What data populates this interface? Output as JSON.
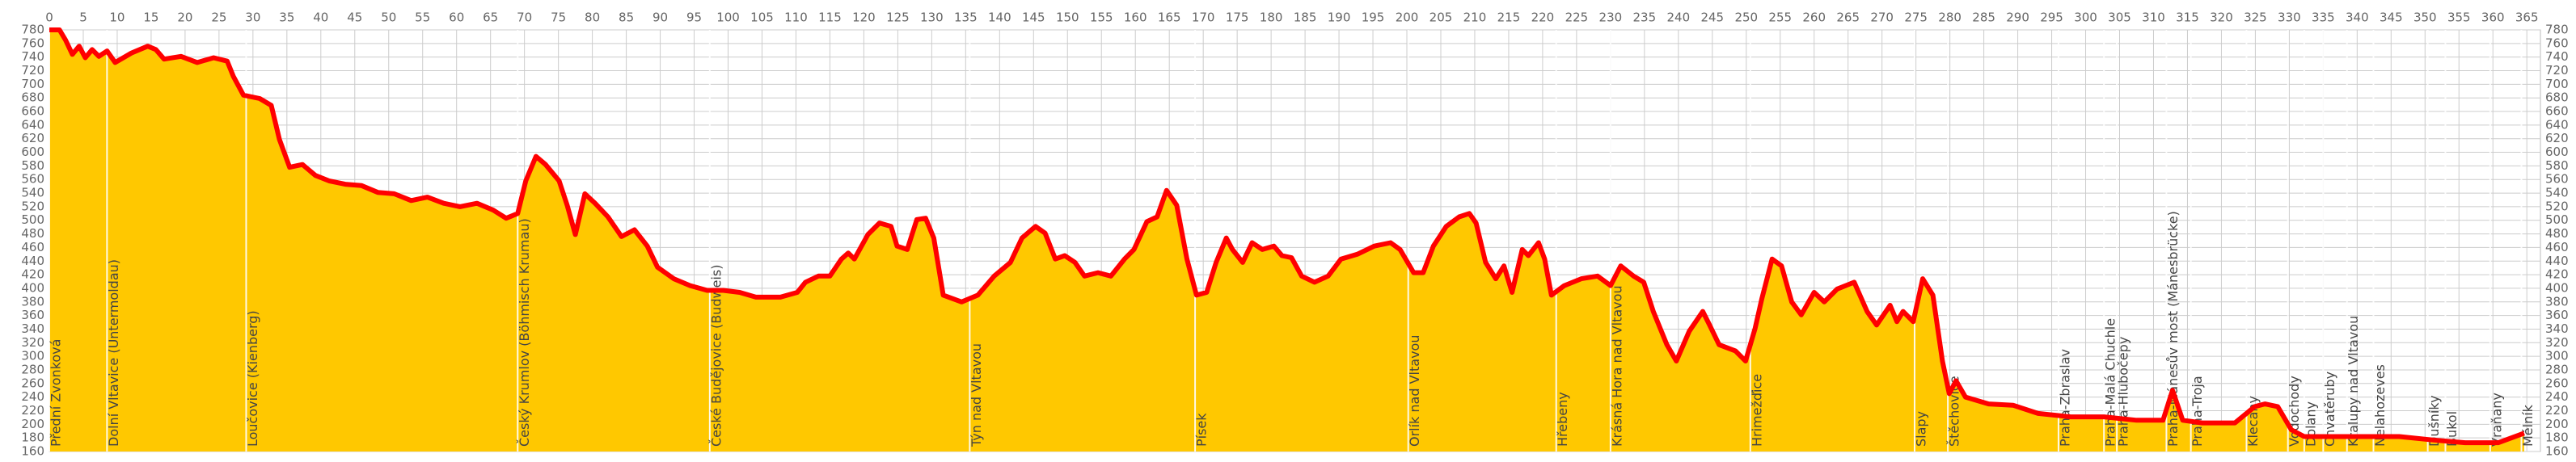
{
  "chart_data": {
    "type": "area",
    "color": "#ffc800",
    "line_color": "#ff0000",
    "grid": true,
    "xlim": [
      0,
      367
    ],
    "xticks": [
      0,
      5,
      10,
      15,
      20,
      25,
      30,
      35,
      40,
      45,
      50,
      55,
      60,
      65,
      70,
      75,
      80,
      85,
      90,
      95,
      100,
      105,
      110,
      115,
      120,
      125,
      130,
      135,
      140,
      145,
      150,
      155,
      160,
      165,
      170,
      175,
      180,
      185,
      190,
      195,
      200,
      205,
      210,
      215,
      220,
      225,
      230,
      235,
      240,
      245,
      250,
      255,
      260,
      265,
      270,
      275,
      280,
      285,
      290,
      295,
      300,
      305,
      310,
      315,
      320,
      325,
      330,
      335,
      340,
      345,
      350,
      355,
      360,
      365
    ],
    "ylim": [
      160,
      780
    ],
    "yticks": [
      160,
      180,
      200,
      220,
      240,
      260,
      280,
      300,
      320,
      340,
      360,
      380,
      400,
      420,
      440,
      460,
      480,
      500,
      520,
      540,
      560,
      580,
      600,
      620,
      640,
      660,
      680,
      700,
      720,
      740,
      760,
      780
    ],
    "x": [
      0,
      1.5,
      2.4,
      3.4,
      4.4,
      5.3,
      6.3,
      7.3,
      8.5,
      9.7,
      12.1,
      14.5,
      15.7,
      16.9,
      19.4,
      21.8,
      24.2,
      26.2,
      27.1,
      28.6,
      31,
      32.7,
      33.9,
      35.4,
      37.3,
      39.2,
      41.2,
      43.6,
      46,
      48.4,
      50.8,
      53.3,
      55.7,
      58.1,
      60.5,
      63,
      65.4,
      67.3,
      69,
      70.2,
      71.7,
      73.1,
      75.1,
      76.3,
      77.5,
      78.9,
      80.4,
      82.3,
      84.3,
      86.2,
      88.1,
      89.6,
      92,
      94.4,
      96.9,
      99.3,
      101.7,
      104.1,
      107.7,
      110.2,
      111.4,
      113.3,
      115,
      116.7,
      117.7,
      118.6,
      120.6,
      122.3,
      124,
      124.9,
      126.4,
      127.8,
      129.1,
      130.3,
      131.7,
      134.4,
      136.8,
      139.2,
      141.6,
      143.3,
      145.3,
      146.7,
      148.2,
      149.6,
      151.1,
      152.5,
      154.5,
      156.4,
      158.4,
      159.8,
      161.7,
      163.2,
      164.6,
      166.1,
      167.6,
      169,
      170.5,
      171.9,
      173.4,
      174.3,
      175.8,
      177.2,
      178.7,
      180.4,
      181.6,
      183,
      184.5,
      186.4,
      188.4,
      190.3,
      192.7,
      195.2,
      197.6,
      199,
      201,
      202.4,
      203.9,
      205.8,
      207.7,
      209.2,
      210.2,
      211.6,
      213.1,
      214.3,
      215.5,
      217,
      217.9,
      219.4,
      220.3,
      221.3,
      223.2,
      225.7,
      228.1,
      230,
      231.5,
      233.4,
      234.9,
      236.3,
      238.3,
      239.7,
      241.6,
      243.6,
      244.6,
      246,
      248.4,
      249.9,
      251.3,
      252.3,
      253.8,
      255.2,
      256.7,
      258.1,
      260,
      261.5,
      263.4,
      265.9,
      267.8,
      269.2,
      271.2,
      272.2,
      273.1,
      274.6,
      276,
      277.5,
      278.9,
      279.9,
      280.9,
      282.3,
      285.7,
      289.3,
      293,
      297.8,
      302.7,
      307.5,
      311.4,
      312.8,
      314.3,
      317.2,
      322,
      324.9,
      326.4,
      328.3,
      330.3,
      332.2,
      336.6,
      340.4,
      346.2,
      351.1,
      355.9,
      360.8,
      364.6
    ],
    "values": [
      780,
      780,
      765,
      744,
      756,
      739,
      751,
      741,
      749,
      732,
      746,
      756,
      751,
      737,
      741,
      732,
      739,
      734,
      712,
      684,
      679,
      669,
      619,
      578,
      582,
      566,
      558,
      553,
      551,
      541,
      539,
      529,
      534,
      525,
      520,
      525,
      515,
      503,
      510,
      558,
      594,
      582,
      558,
      522,
      479,
      539,
      525,
      505,
      476,
      486,
      462,
      431,
      414,
      404,
      397,
      397,
      394,
      387,
      387,
      394,
      409,
      418,
      418,
      443,
      452,
      443,
      479,
      496,
      491,
      462,
      457,
      501,
      503,
      474,
      390,
      380,
      390,
      418,
      438,
      474,
      491,
      481,
      443,
      448,
      438,
      418,
      423,
      418,
      443,
      457,
      498,
      505,
      544,
      522,
      443,
      390,
      394,
      438,
      474,
      457,
      438,
      467,
      457,
      462,
      448,
      445,
      418,
      409,
      418,
      443,
      450,
      462,
      467,
      457,
      423,
      423,
      462,
      491,
      505,
      510,
      496,
      438,
      414,
      433,
      394,
      457,
      448,
      467,
      443,
      390,
      404,
      414,
      418,
      404,
      433,
      418,
      409,
      366,
      317,
      293,
      337,
      366,
      346,
      317,
      308,
      293,
      341,
      385,
      443,
      433,
      380,
      361,
      394,
      380,
      399,
      409,
      366,
      346,
      375,
      351,
      366,
      351,
      414,
      390,
      293,
      245,
      264,
      240,
      230,
      228,
      216,
      211,
      211,
      206,
      206,
      250,
      206,
      202,
      202,
      226,
      230,
      226,
      192,
      182,
      182,
      182,
      182,
      177,
      173,
      173,
      187
    ],
    "places": [
      {
        "name": "Přední Zvonková",
        "x": 0
      },
      {
        "name": "Dolní Vltavice (Untermoldau)",
        "x": 8.5
      },
      {
        "name": "Loučovice (Kienberg)",
        "x": 29
      },
      {
        "name": "Český Krumlov (Böhmisch Krumau)",
        "x": 69
      },
      {
        "name": "České Budějovice (Budweis)",
        "x": 97.3
      },
      {
        "name": "Týn nad Vltavou",
        "x": 135.6
      },
      {
        "name": "Písek",
        "x": 168.8
      },
      {
        "name": "Orlík nad Vltavou",
        "x": 200.2
      },
      {
        "name": "Hřebeny",
        "x": 222
      },
      {
        "name": "Krásná Hora nad Vltavou",
        "x": 230
      },
      {
        "name": "Hrimežďice",
        "x": 250.6
      },
      {
        "name": "Slapy",
        "x": 274.8
      },
      {
        "name": "Štěchovice",
        "x": 279.7
      },
      {
        "name": "Praha-Zbraslav",
        "x": 296
      },
      {
        "name": "Praha-Malá Chuchle",
        "x": 302.7
      },
      {
        "name": "Praha-Hlubočepy",
        "x": 304.6
      },
      {
        "name": "Praha-Mánesův most (Mánesbrücke)",
        "x": 311.9
      },
      {
        "name": "Praha-Troja",
        "x": 315.5
      },
      {
        "name": "Klecany",
        "x": 323.7
      },
      {
        "name": "Vodochody",
        "x": 329.8
      },
      {
        "name": "Dolany",
        "x": 332.2
      },
      {
        "name": "Chvatěruby",
        "x": 335
      },
      {
        "name": "Kralupy nad Vltavou",
        "x": 338.5
      },
      {
        "name": "Nelahozeves",
        "x": 342.4
      },
      {
        "name": "Dušníky",
        "x": 350.4
      },
      {
        "name": "Bukol",
        "x": 353
      },
      {
        "name": "Vraňany",
        "x": 359.6
      },
      {
        "name": "Mělník",
        "x": 364.2
      }
    ]
  }
}
